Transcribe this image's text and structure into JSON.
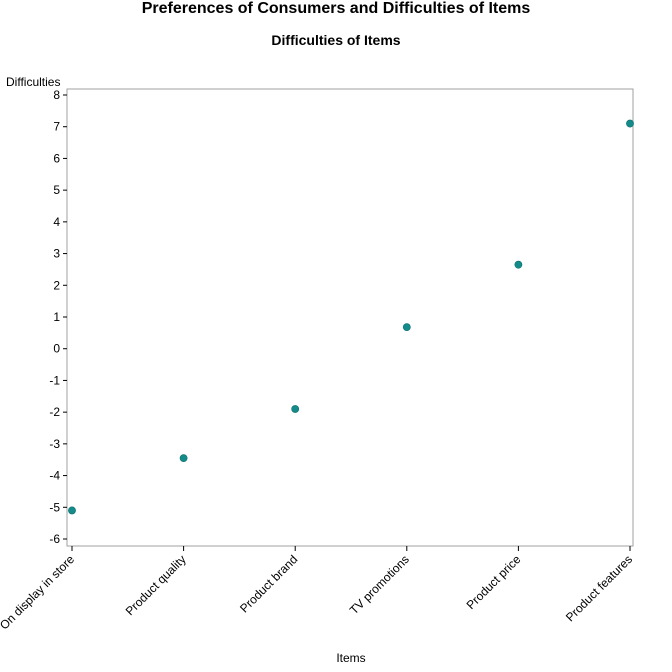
{
  "title": "Preferences of Consumers and Difficulties of Items",
  "subtitle": "Difficulties of Items",
  "chart_data": {
    "type": "scatter",
    "xlabel": "Items",
    "ylabel": "Difficulties",
    "categories": [
      "On display in store",
      "Product quality",
      "Product brand",
      "TV promotions",
      "Product price",
      "Product features"
    ],
    "values": [
      -5.1,
      -3.45,
      -1.9,
      0.68,
      2.65,
      7.1
    ],
    "ylim": [
      -6,
      8
    ],
    "yticks": [
      -6,
      -5,
      -4,
      -3,
      -2,
      -1,
      0,
      1,
      2,
      3,
      4,
      5,
      6,
      7,
      8
    ],
    "grid": false,
    "marker_color": "#138b8a",
    "frame_color": "#a0a0a0"
  }
}
